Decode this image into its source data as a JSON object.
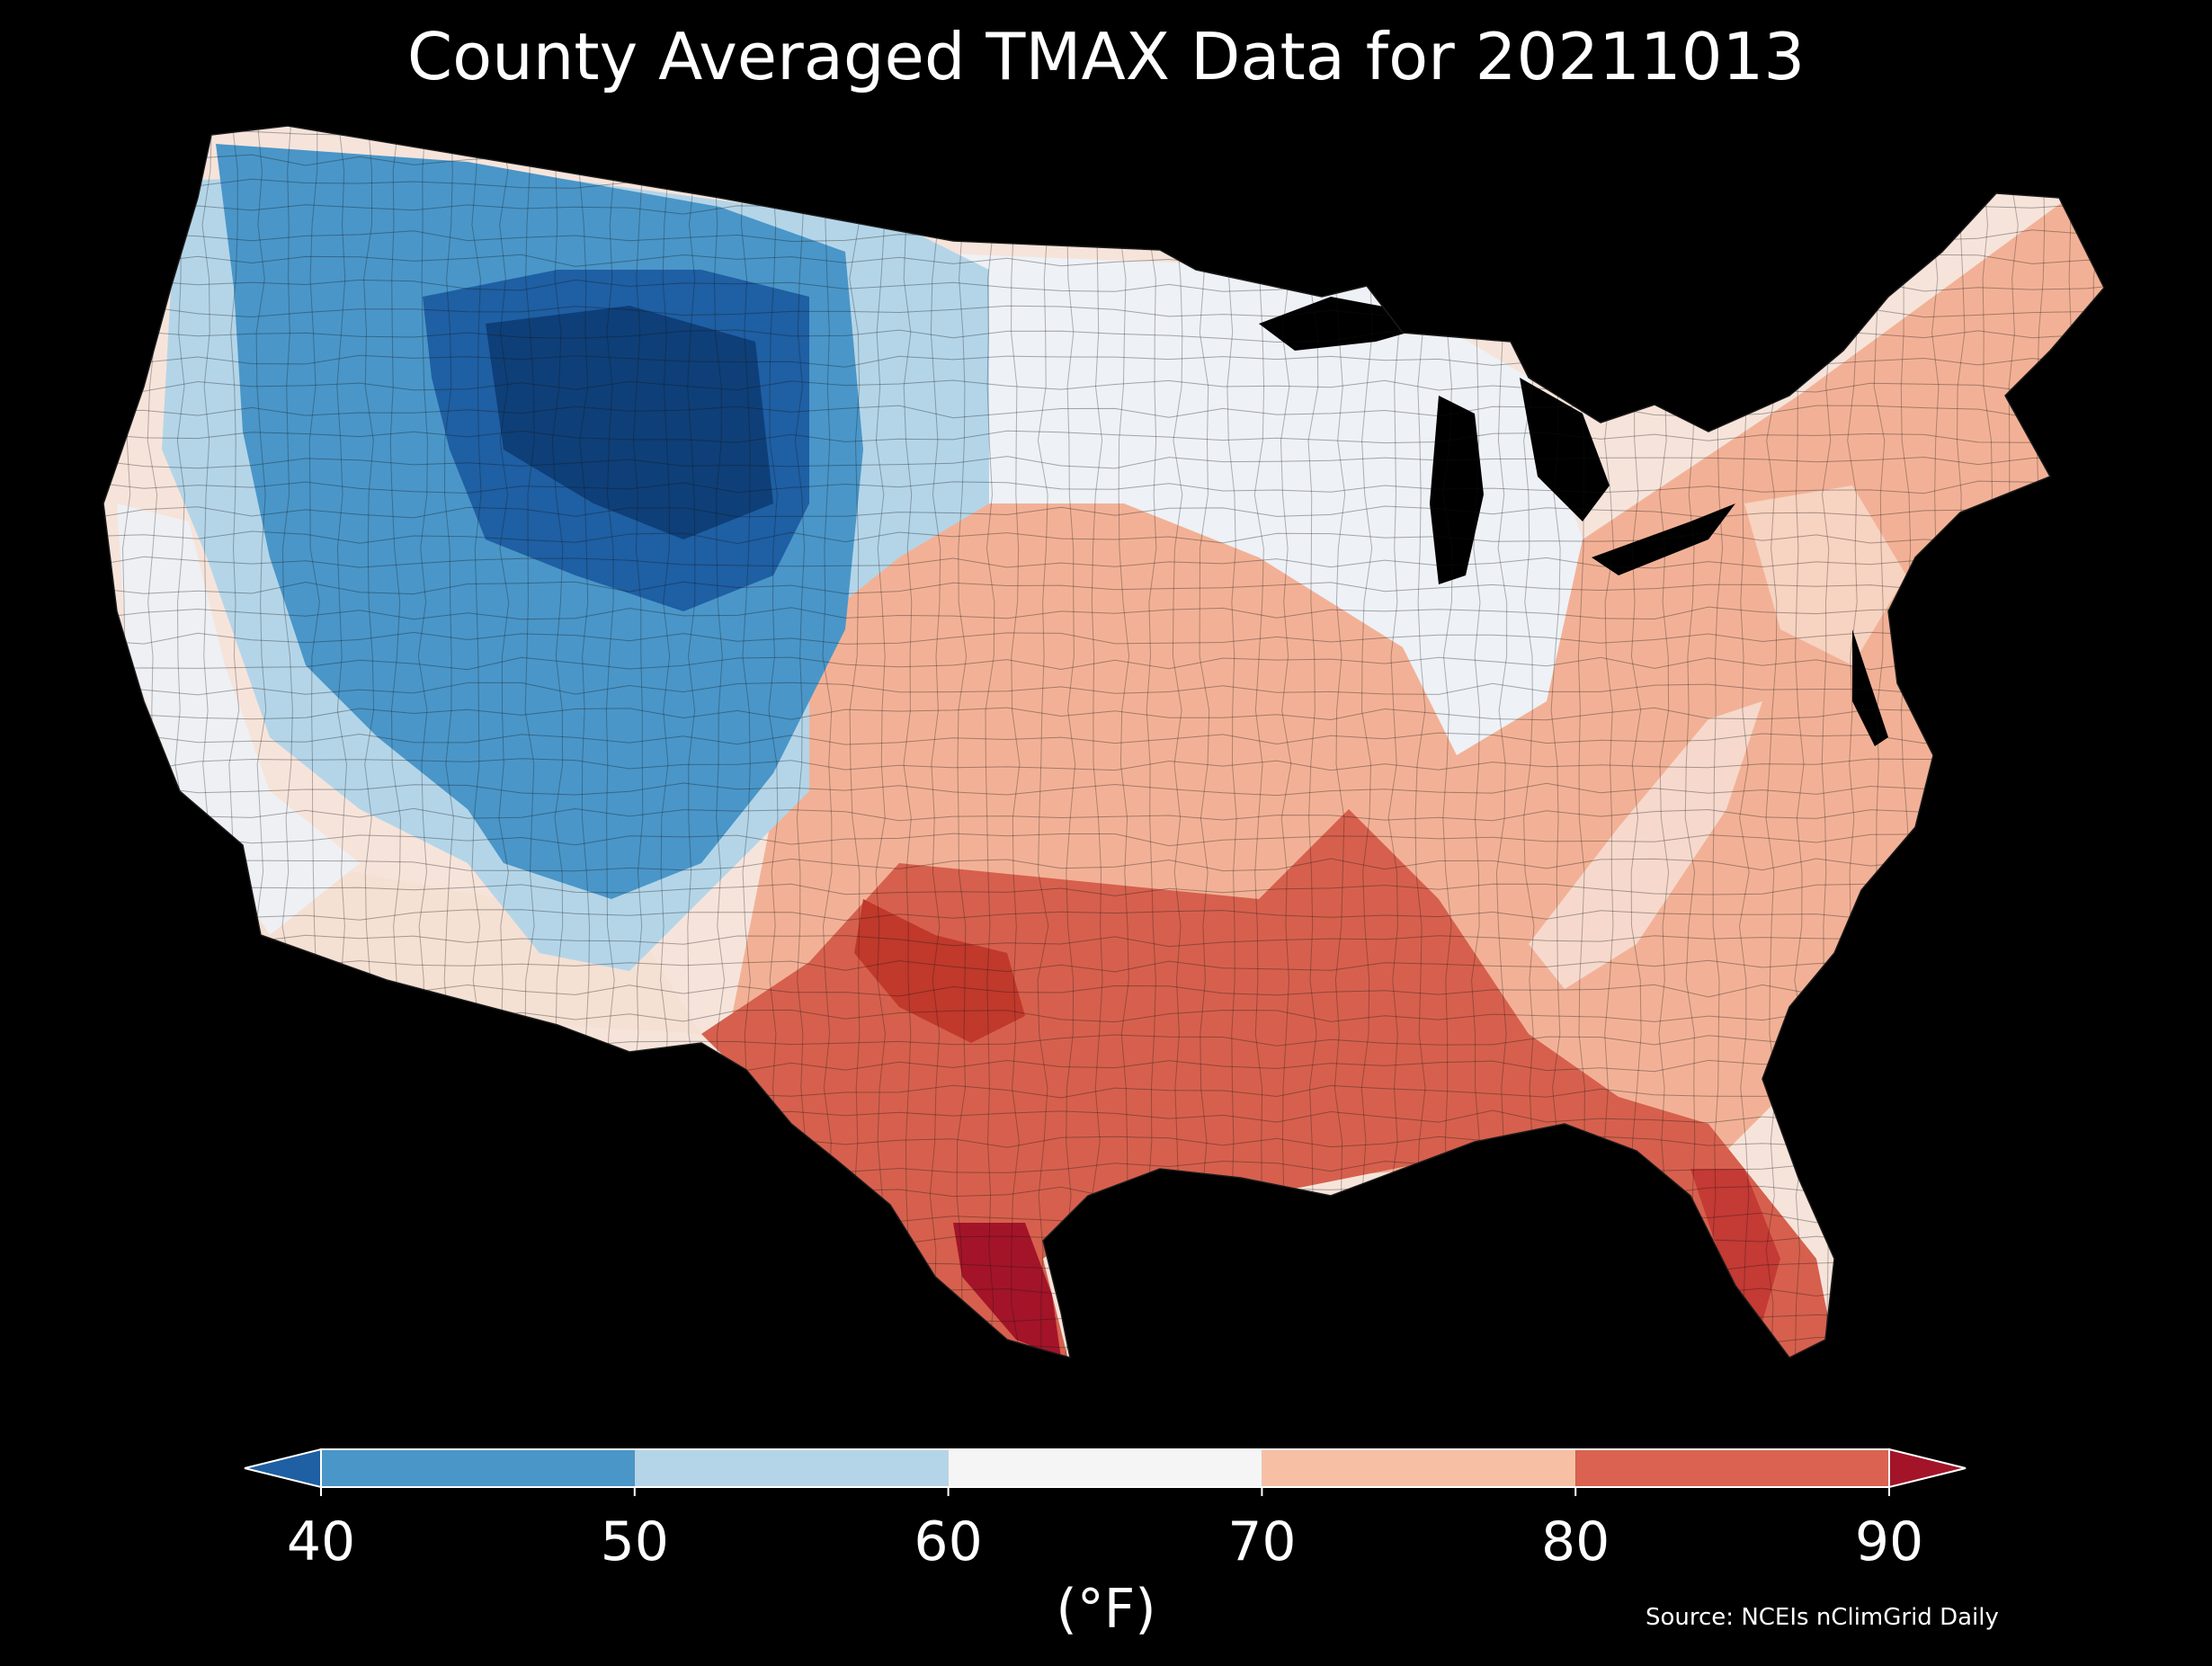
{
  "title": "County Averaged TMAX Data for 20211013",
  "source": "Source: NCEIs nClimGrid Daily",
  "colorbar": {
    "unit_label": "(°F)",
    "ticks": [
      "40",
      "50",
      "60",
      "70",
      "80",
      "90"
    ],
    "extend": "both",
    "bins": [
      {
        "range": "<40",
        "color": "#1f5fa3"
      },
      {
        "range": "40-50",
        "color": "#4a96c8"
      },
      {
        "range": "50-60",
        "color": "#b4d5e8"
      },
      {
        "range": "60-70",
        "color": "#f5f5f5"
      },
      {
        "range": "70-80",
        "color": "#f7c0a5"
      },
      {
        "range": "80-90",
        "color": "#db6251"
      },
      {
        "range": ">90",
        "color": "#a31428"
      }
    ]
  },
  "map": {
    "region": "Contiguous United States",
    "background": "#000000",
    "border_color": "#1a1a1a",
    "patterns": [
      {
        "area": "Northern Rockies / Wyoming / Montana",
        "bin": "<40"
      },
      {
        "area": "Pacific Northwest interior / Great Basin",
        "bin": "40-50"
      },
      {
        "area": "Northern Plains / Dakotas",
        "bin": "50-60"
      },
      {
        "area": "Upper Midwest / California coast",
        "bin": "60-70"
      },
      {
        "area": "Central Plains / Ohio Valley / Northeast",
        "bin": "70-80"
      },
      {
        "area": "Southern Plains / Gulf Coast / Florida",
        "bin": "80-90"
      },
      {
        "area": "South Texas",
        "bin": ">90"
      }
    ]
  }
}
